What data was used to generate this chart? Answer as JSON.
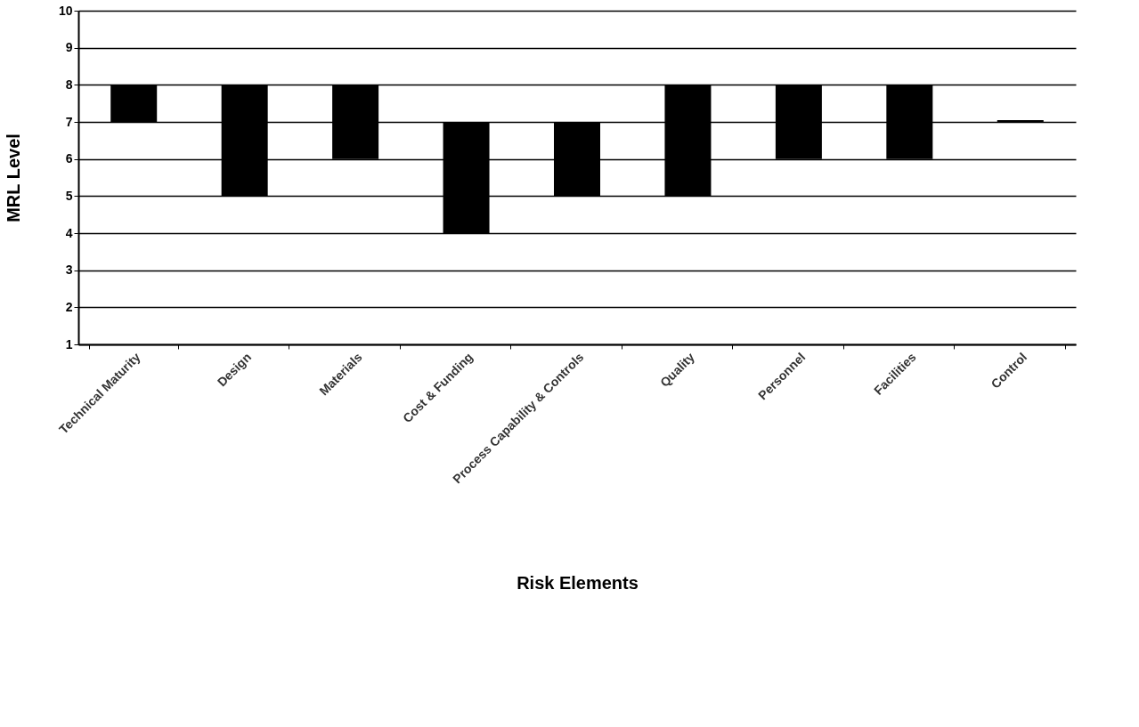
{
  "chart_data": {
    "type": "bar",
    "xlabel": "Risk Elements",
    "ylabel": "MRL Level",
    "categories": [
      "Technical Maturity",
      "Design",
      "Materials",
      "Cost & Funding",
      "Process Capability & Controls",
      "Quality",
      "Personnel",
      "Facilities",
      "Control"
    ],
    "values": [
      1,
      3,
      2,
      3,
      2,
      3,
      2,
      2,
      0.05
    ],
    "base": [
      7,
      5,
      6,
      4,
      5,
      5,
      6,
      6,
      7
    ],
    "color": "#000000",
    "ylim": [
      1,
      10
    ],
    "yticks": [
      1,
      2,
      3,
      4,
      5,
      6,
      7,
      8,
      9,
      10
    ],
    "grid": "y"
  }
}
